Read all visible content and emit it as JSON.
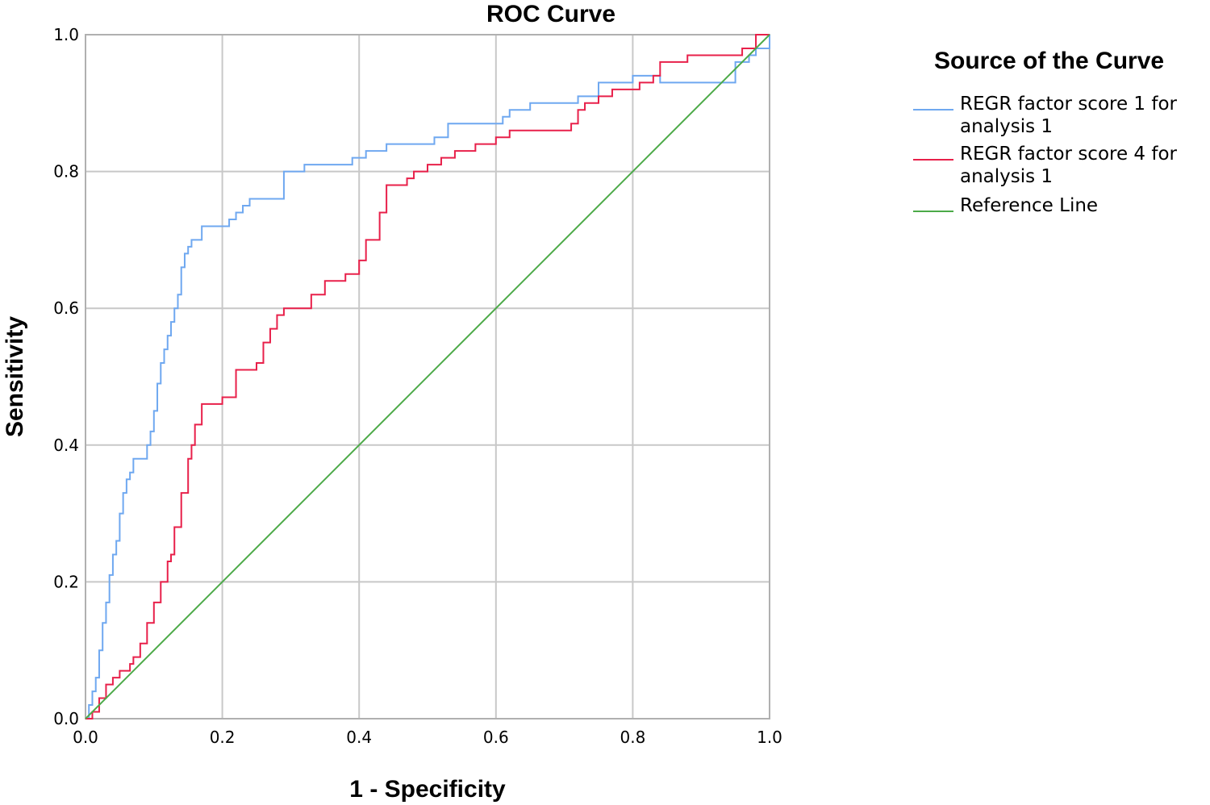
{
  "chart_data": {
    "type": "line",
    "title": "ROC Curve",
    "xlabel": "1 - Specificity",
    "ylabel": "Sensitivity",
    "xlim": [
      0,
      1
    ],
    "ylim": [
      0,
      1
    ],
    "xticks": [
      "0.0",
      "0.2",
      "0.4",
      "0.6",
      "0.8",
      "1.0"
    ],
    "yticks": [
      "0.0",
      "0.2",
      "0.4",
      "0.6",
      "0.8",
      "1.0"
    ],
    "grid": true,
    "legend": {
      "title": "Source of the Curve",
      "position": "right",
      "entries": [
        {
          "lines": [
            "REGR factor score   1 for",
            "analysis 1"
          ],
          "color": "#6fa8f0"
        },
        {
          "lines": [
            "REGR factor score   4 for",
            "analysis 1"
          ],
          "color": "#e8204a"
        },
        {
          "lines": [
            "Reference Line"
          ],
          "color": "#4caa48"
        }
      ]
    },
    "series": [
      {
        "name": "REGR factor score   1 for analysis 1",
        "color": "#6fa8f0",
        "x": [
          0,
          0.005,
          0.01,
          0.015,
          0.02,
          0.025,
          0.03,
          0.035,
          0.04,
          0.045,
          0.05,
          0.055,
          0.06,
          0.065,
          0.07,
          0.09,
          0.095,
          0.1,
          0.105,
          0.11,
          0.115,
          0.12,
          0.125,
          0.13,
          0.135,
          0.14,
          0.145,
          0.15,
          0.155,
          0.17,
          0.2,
          0.21,
          0.22,
          0.23,
          0.24,
          0.28,
          0.29,
          0.31,
          0.32,
          0.38,
          0.39,
          0.41,
          0.44,
          0.51,
          0.53,
          0.61,
          0.62,
          0.64,
          0.65,
          0.72,
          0.75,
          0.8,
          0.84,
          0.95,
          0.97,
          0.98,
          1.0
        ],
        "y": [
          0,
          0.02,
          0.04,
          0.06,
          0.1,
          0.14,
          0.17,
          0.21,
          0.24,
          0.26,
          0.3,
          0.33,
          0.35,
          0.36,
          0.38,
          0.4,
          0.42,
          0.45,
          0.49,
          0.52,
          0.54,
          0.56,
          0.58,
          0.6,
          0.62,
          0.66,
          0.68,
          0.69,
          0.7,
          0.72,
          0.72,
          0.73,
          0.74,
          0.75,
          0.76,
          0.76,
          0.8,
          0.8,
          0.81,
          0.81,
          0.82,
          0.83,
          0.84,
          0.85,
          0.87,
          0.88,
          0.89,
          0.89,
          0.9,
          0.91,
          0.93,
          0.94,
          0.93,
          0.96,
          0.97,
          0.98,
          1.0
        ]
      },
      {
        "name": "REGR factor score   4 for analysis 1",
        "color": "#e8204a",
        "x": [
          0,
          0.01,
          0.02,
          0.03,
          0.04,
          0.05,
          0.065,
          0.07,
          0.08,
          0.09,
          0.1,
          0.11,
          0.12,
          0.125,
          0.13,
          0.14,
          0.15,
          0.155,
          0.16,
          0.17,
          0.2,
          0.22,
          0.25,
          0.26,
          0.27,
          0.28,
          0.29,
          0.33,
          0.35,
          0.38,
          0.4,
          0.41,
          0.43,
          0.44,
          0.47,
          0.48,
          0.5,
          0.52,
          0.54,
          0.57,
          0.6,
          0.62,
          0.65,
          0.71,
          0.72,
          0.73,
          0.75,
          0.77,
          0.81,
          0.83,
          0.84,
          0.88,
          0.95,
          0.96,
          0.98,
          1.0
        ],
        "y": [
          0,
          0.01,
          0.03,
          0.05,
          0.06,
          0.07,
          0.08,
          0.09,
          0.11,
          0.14,
          0.17,
          0.2,
          0.23,
          0.24,
          0.28,
          0.33,
          0.38,
          0.4,
          0.43,
          0.46,
          0.47,
          0.51,
          0.52,
          0.55,
          0.57,
          0.59,
          0.6,
          0.62,
          0.64,
          0.65,
          0.67,
          0.7,
          0.74,
          0.78,
          0.79,
          0.8,
          0.81,
          0.82,
          0.83,
          0.84,
          0.85,
          0.86,
          0.86,
          0.87,
          0.89,
          0.9,
          0.91,
          0.92,
          0.93,
          0.94,
          0.96,
          0.97,
          0.97,
          0.98,
          1.0,
          1.0
        ]
      },
      {
        "name": "Reference Line",
        "color": "#4caa48",
        "x": [
          0,
          1
        ],
        "y": [
          0,
          1
        ]
      }
    ]
  }
}
